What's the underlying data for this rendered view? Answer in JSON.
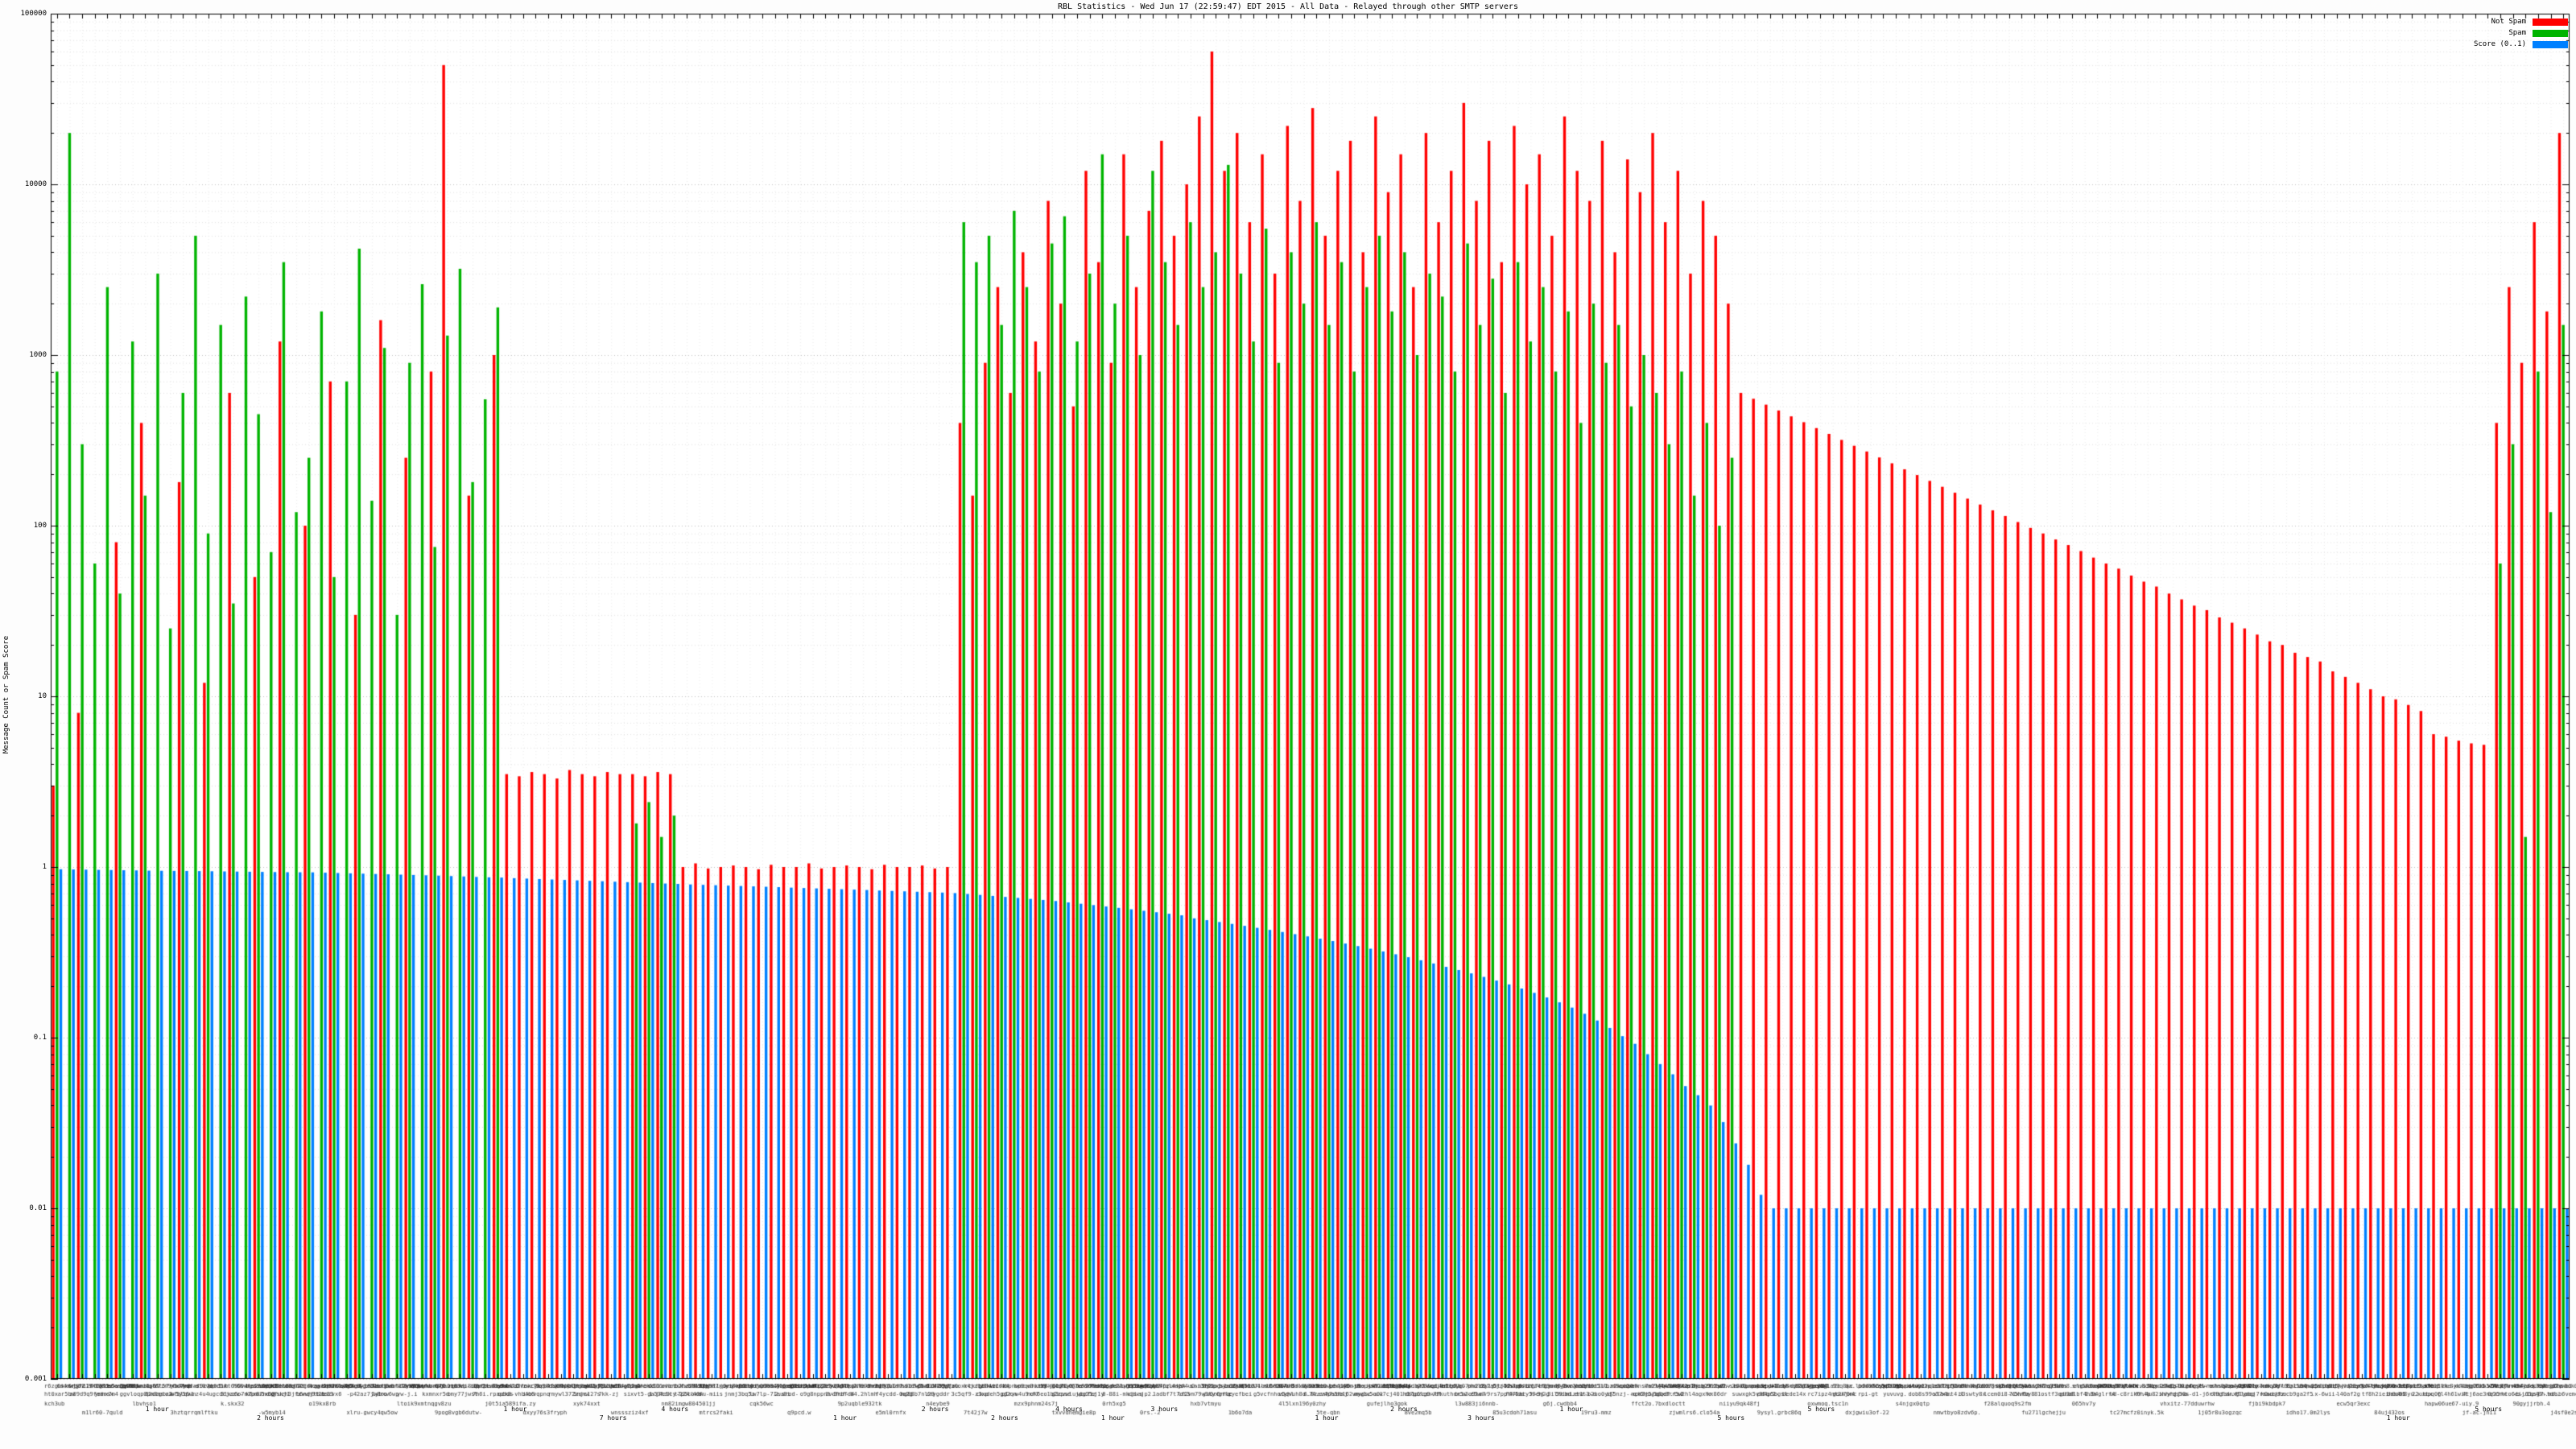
{
  "chart_data": {
    "type": "bar",
    "title": "RBL Statistics - Wed Jun 17 (22:59:47) EDT 2015 - All Data - Relayed through other SMTP servers",
    "ylabel": "Message Count or Spam Score",
    "y_scale": "log",
    "ylim": [
      0.001,
      100000
    ],
    "y_tick_labels": [
      "100000",
      "10000",
      "1000",
      "100",
      "10",
      "1",
      "0.1",
      "0.01",
      "0.001"
    ],
    "grid": true,
    "legend_position": "top-right",
    "x_tick_labels_legible": false,
    "x_time_labels": [
      {
        "t": "1 hour",
        "f": 0.061
      },
      {
        "t": "2 hours",
        "f": 0.105
      },
      {
        "t": "1 hour",
        "f": 0.2
      },
      {
        "t": "7 hours",
        "f": 0.238
      },
      {
        "t": "4 hours",
        "f": 0.262
      },
      {
        "t": "1 hour",
        "f": 0.328
      },
      {
        "t": "2 hours",
        "f": 0.363
      },
      {
        "t": "2 hours",
        "f": 0.39
      },
      {
        "t": "4 hours",
        "f": 0.415
      },
      {
        "t": "1 hour",
        "f": 0.432
      },
      {
        "t": "3 hours",
        "f": 0.452
      },
      {
        "t": "1 hour",
        "f": 0.515
      },
      {
        "t": "2 hours",
        "f": 0.545
      },
      {
        "t": "3 hours",
        "f": 0.575
      },
      {
        "t": "1 hour",
        "f": 0.61
      },
      {
        "t": "5 hours",
        "f": 0.672
      },
      {
        "t": "5 hours",
        "f": 0.707
      },
      {
        "t": "1 hour",
        "f": 0.931
      },
      {
        "t": "5 hours",
        "f": 0.966
      }
    ],
    "legend": [
      {
        "label": "Not Spam",
        "color": "#ff0000"
      },
      {
        "label": "Spam",
        "color": "#00b400"
      },
      {
        "label": "Score (0..1)",
        "color": "#0080ff"
      }
    ],
    "series": [
      {
        "name": "Not Spam",
        "color": "#ff0000",
        "values": [
          3,
          0,
          8,
          0,
          0,
          80,
          0,
          400,
          0,
          0,
          180,
          0,
          12,
          0,
          600,
          0,
          50,
          0,
          1200,
          0,
          100,
          0,
          700,
          0,
          30,
          0,
          1600,
          0,
          250,
          0,
          800,
          50000,
          0,
          150,
          0,
          1000,
          3.5,
          3.4,
          3.6,
          3.5,
          3.3,
          3.7,
          3.5,
          3.4,
          3.6,
          3.5,
          3.5,
          3.4,
          3.6,
          3.5,
          1,
          1.05,
          0.98,
          1,
          1.02,
          1,
          0.97,
          1.03,
          1,
          1,
          1.05,
          0.98,
          1,
          1.02,
          1,
          0.97,
          1.03,
          1,
          1,
          1.02,
          0.98,
          1,
          400,
          150,
          900,
          2500,
          600,
          4000,
          1200,
          8000,
          2000,
          500,
          12000,
          3500,
          900,
          15000,
          2500,
          7000,
          18000,
          5000,
          10000,
          25000,
          60000,
          12000,
          20000,
          6000,
          15000,
          3000,
          22000,
          8000,
          28000,
          5000,
          12000,
          18000,
          4000,
          25000,
          9000,
          15000,
          2500,
          20000,
          6000,
          12000,
          30000,
          8000,
          18000,
          3500,
          22000,
          10000,
          15000,
          5000,
          25000,
          12000,
          8000,
          18000,
          4000,
          14000,
          9000,
          20000,
          6000,
          12000,
          3000,
          8000,
          5000,
          2000,
          600,
          554,
          512,
          473,
          437,
          404,
          373,
          345,
          318,
          294,
          272,
          251,
          232,
          214,
          198,
          183,
          169,
          156,
          144,
          133,
          123,
          114,
          105,
          97,
          90,
          83,
          77,
          71,
          65,
          60,
          56,
          51,
          47,
          44,
          40,
          37,
          34,
          32,
          29,
          27,
          25,
          23,
          21,
          20,
          18,
          17,
          16,
          14,
          13,
          12,
          11,
          10,
          9.6,
          8.9,
          8.2,
          6,
          5.8,
          5.5,
          5.3,
          5.2,
          400,
          2500,
          900,
          6000,
          1800,
          20000
        ]
      },
      {
        "name": "Spam",
        "color": "#00b400",
        "values": [
          800,
          20000,
          300,
          60,
          2500,
          40,
          1200,
          150,
          3000,
          25,
          600,
          5000,
          90,
          1500,
          35,
          2200,
          450,
          70,
          3500,
          120,
          250,
          1800,
          50,
          700,
          4200,
          140,
          1100,
          30,
          900,
          2600,
          75,
          1300,
          3200,
          180,
          550,
          1900,
          0,
          0,
          0,
          0,
          0,
          0,
          0,
          0,
          0,
          0,
          1.8,
          2.4,
          1.5,
          2,
          0,
          0,
          0,
          0,
          0,
          0,
          0,
          0,
          0,
          0,
          0,
          0,
          0,
          0,
          0,
          0,
          0,
          0,
          0,
          0,
          0,
          0,
          6000,
          3500,
          5000,
          1500,
          7000,
          2500,
          800,
          4500,
          6500,
          1200,
          3000,
          15000,
          2000,
          5000,
          1000,
          12000,
          3500,
          1500,
          6000,
          2500,
          4000,
          13000,
          3000,
          1200,
          5500,
          900,
          4000,
          2000,
          6000,
          1500,
          3500,
          800,
          2500,
          5000,
          1800,
          4000,
          1000,
          3000,
          2200,
          800,
          4500,
          1500,
          2800,
          600,
          3500,
          1200,
          2500,
          800,
          1800,
          400,
          2000,
          900,
          1500,
          500,
          1000,
          600,
          300,
          800,
          150,
          400,
          100,
          250,
          0,
          0,
          0,
          0,
          0,
          0,
          0,
          0,
          0,
          0,
          0,
          0,
          0,
          0,
          0,
          0,
          0,
          0,
          0,
          0,
          0,
          0,
          0,
          0,
          0,
          0,
          0,
          0,
          0,
          0,
          0,
          0,
          0,
          0,
          0,
          0,
          0,
          0,
          0,
          0,
          0,
          0,
          0,
          0,
          0,
          0,
          0,
          0,
          0,
          0,
          0,
          0,
          0,
          0,
          0,
          0,
          0,
          0,
          0,
          0,
          60,
          300,
          1.5,
          800,
          120,
          1500
        ]
      },
      {
        "name": "Score (0..1)",
        "color": "#0080ff",
        "values": [
          0.97,
          0.967,
          0.965,
          0.962,
          0.96,
          0.957,
          0.955,
          0.952,
          0.95,
          0.949,
          0.948,
          0.946,
          0.944,
          0.942,
          0.94,
          0.938,
          0.936,
          0.934,
          0.932,
          0.931,
          0.93,
          0.926,
          0.922,
          0.918,
          0.914,
          0.91,
          0.906,
          0.902,
          0.898,
          0.894,
          0.89,
          0.885,
          0.88,
          0.875,
          0.87,
          0.867,
          0.86,
          0.855,
          0.85,
          0.845,
          0.84,
          0.835,
          0.83,
          0.825,
          0.82,
          0.815,
          0.81,
          0.805,
          0.8,
          0.796,
          0.79,
          0.786,
          0.782,
          0.778,
          0.774,
          0.77,
          0.766,
          0.762,
          0.757,
          0.753,
          0.749,
          0.745,
          0.741,
          0.737,
          0.733,
          0.728,
          0.724,
          0.72,
          0.716,
          0.712,
          0.708,
          0.703,
          0.695,
          0.686,
          0.677,
          0.668,
          0.659,
          0.65,
          0.641,
          0.632,
          0.62,
          0.609,
          0.598,
          0.587,
          0.576,
          0.565,
          0.554,
          0.543,
          0.532,
          0.521,
          0.5,
          0.488,
          0.476,
          0.464,
          0.452,
          0.44,
          0.428,
          0.416,
          0.404,
          0.392,
          0.38,
          0.368,
          0.356,
          0.344,
          0.332,
          0.32,
          0.308,
          0.296,
          0.284,
          0.272,
          0.26,
          0.249,
          0.238,
          0.227,
          0.216,
          0.205,
          0.194,
          0.183,
          0.172,
          0.161,
          0.15,
          0.138,
          0.126,
          0.114,
          0.102,
          0.092,
          0.08,
          0.07,
          0.061,
          0.052,
          0.046,
          0.04,
          0.032,
          0.024,
          0.018,
          0.012,
          0.01,
          0.01,
          0.01,
          0.01,
          0.01,
          0.01,
          0.01,
          0.01,
          0.01,
          0.01,
          0.01,
          0.01,
          0.01,
          0.01,
          0.01,
          0.01,
          0.01,
          0.01,
          0.01,
          0.01,
          0.01,
          0.01,
          0.01,
          0.01,
          0.01,
          0.01,
          0.01,
          0.01,
          0.01,
          0.01,
          0.01,
          0.01,
          0.01,
          0.01,
          0.01,
          0.01,
          0.01,
          0.01,
          0.01,
          0.01,
          0.01,
          0.01,
          0.01,
          0.01,
          0.01,
          0.01,
          0.01,
          0.01,
          0.01,
          0.01,
          0.01,
          0.01,
          0.01,
          0.01,
          0.01,
          0.01,
          0.01,
          0.01,
          0.01,
          0.01,
          0.01,
          0.01,
          0.01,
          0.01
        ]
      }
    ]
  }
}
